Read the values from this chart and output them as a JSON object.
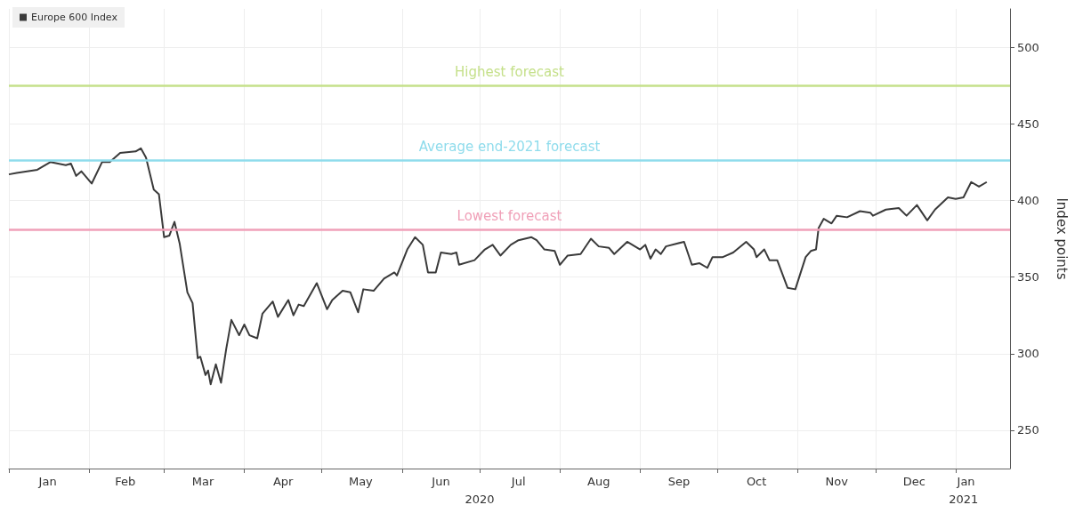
{
  "chart_data": {
    "type": "line",
    "ylabel": "Index points",
    "xlim": [
      "2020-01-01",
      "2021-01-22"
    ],
    "xticks": [
      {
        "value": "2020-01-01",
        "label": null
      },
      {
        "value": "2020-01-16",
        "label": "Jan"
      },
      {
        "value": "2020-02-01",
        "label": null
      },
      {
        "value": "2020-02-15",
        "label": "Feb"
      },
      {
        "value": "2020-03-01",
        "label": null
      },
      {
        "value": "2020-03-16",
        "label": "Mar"
      },
      {
        "value": "2020-04-01",
        "label": null
      },
      {
        "value": "2020-04-16",
        "label": "Apr"
      },
      {
        "value": "2020-05-01",
        "label": null
      },
      {
        "value": "2020-05-16",
        "label": "May"
      },
      {
        "value": "2020-06-01",
        "label": null
      },
      {
        "value": "2020-06-16",
        "label": "Jun"
      },
      {
        "value": "2020-07-01",
        "label": null
      },
      {
        "value": "2020-07-16",
        "label": "Jul"
      },
      {
        "value": "2020-08-01",
        "label": null
      },
      {
        "value": "2020-08-16",
        "label": "Aug"
      },
      {
        "value": "2020-09-01",
        "label": null
      },
      {
        "value": "2020-09-16",
        "label": "Sep"
      },
      {
        "value": "2020-10-01",
        "label": null
      },
      {
        "value": "2020-10-16",
        "label": "Oct"
      },
      {
        "value": "2020-11-01",
        "label": null
      },
      {
        "value": "2020-11-16",
        "label": "Nov"
      },
      {
        "value": "2020-12-01",
        "label": null
      },
      {
        "value": "2020-12-16",
        "label": "Dec"
      },
      {
        "value": "2021-01-01",
        "label": null
      },
      {
        "value": "2021-01-05",
        "label": "Jan"
      }
    ],
    "x2lim": [
      "2020-01-01",
      "2021-01-22"
    ],
    "x2ticks": [
      {
        "value": "2020-07-01",
        "label": "2020"
      },
      {
        "value": "2021-01-04",
        "label": "2021"
      }
    ],
    "ylim": [
      225,
      525
    ],
    "yticks": [
      250,
      300,
      350,
      400,
      450,
      500
    ],
    "grid": true,
    "legend": "top left",
    "ref_lines": [
      {
        "axis": "y",
        "value": 475,
        "label": "Highest forecast",
        "color": "#c5e08a"
      },
      {
        "axis": "y",
        "value": 426,
        "label": "Average end-2021 forecast",
        "color": "#8fdcec"
      },
      {
        "axis": "y",
        "value": 381,
        "label": "Lowest forecast",
        "color": "#f0a0b8"
      }
    ],
    "series": [
      {
        "name": "Europe 600 Index",
        "color": "#3a3a3a",
        "x": [
          "2020-01-01",
          "2020-01-04",
          "2020-01-12",
          "2020-01-17",
          "2020-01-23",
          "2020-01-25",
          "2020-01-27",
          "2020-01-29",
          "2020-02-02",
          "2020-02-06",
          "2020-02-09",
          "2020-02-13",
          "2020-02-19",
          "2020-02-21",
          "2020-02-23",
          "2020-02-26",
          "2020-02-28",
          "2020-03-01",
          "2020-03-03",
          "2020-03-05",
          "2020-03-07",
          "2020-03-10",
          "2020-03-12",
          "2020-03-14",
          "2020-03-15",
          "2020-03-17",
          "2020-03-18",
          "2020-03-19",
          "2020-03-21",
          "2020-03-23",
          "2020-03-25",
          "2020-03-27",
          "2020-03-30",
          "2020-04-01",
          "2020-04-03",
          "2020-04-06",
          "2020-04-08",
          "2020-04-12",
          "2020-04-14",
          "2020-04-18",
          "2020-04-20",
          "2020-04-22",
          "2020-04-24",
          "2020-04-29",
          "2020-05-03",
          "2020-05-05",
          "2020-05-09",
          "2020-05-12",
          "2020-05-15",
          "2020-05-17",
          "2020-05-21",
          "2020-05-25",
          "2020-05-29",
          "2020-05-30",
          "2020-06-03",
          "2020-06-06",
          "2020-06-09",
          "2020-06-11",
          "2020-06-14",
          "2020-06-16",
          "2020-06-20",
          "2020-06-22",
          "2020-06-23",
          "2020-06-29",
          "2020-07-03",
          "2020-07-06",
          "2020-07-09",
          "2020-07-13",
          "2020-07-16",
          "2020-07-21",
          "2020-07-23",
          "2020-07-26",
          "2020-07-30",
          "2020-08-01",
          "2020-08-04",
          "2020-08-09",
          "2020-08-13",
          "2020-08-16",
          "2020-08-20",
          "2020-08-22",
          "2020-08-27",
          "2020-09-01",
          "2020-09-03",
          "2020-09-05",
          "2020-09-07",
          "2020-09-09",
          "2020-09-11",
          "2020-09-18",
          "2020-09-21",
          "2020-09-24",
          "2020-09-27",
          "2020-09-29",
          "2020-10-03",
          "2020-10-07",
          "2020-10-12",
          "2020-10-15",
          "2020-10-16",
          "2020-10-19",
          "2020-10-21",
          "2020-10-24",
          "2020-10-28",
          "2020-10-31",
          "2020-11-04",
          "2020-11-06",
          "2020-11-08",
          "2020-11-09",
          "2020-11-11",
          "2020-11-14",
          "2020-11-16",
          "2020-11-20",
          "2020-11-25",
          "2020-11-29",
          "2020-11-30",
          "2020-12-05",
          "2020-12-10",
          "2020-12-13",
          "2020-12-17",
          "2020-12-21",
          "2020-12-24",
          "2020-12-29",
          "2021-01-01",
          "2021-01-04",
          "2021-01-07",
          "2021-01-10",
          "2021-01-13"
        ],
        "values": [
          417,
          418,
          420,
          425,
          423,
          424,
          416,
          419,
          411,
          425,
          425,
          431,
          432,
          434,
          428,
          407,
          404,
          376,
          377,
          386,
          372,
          340,
          333,
          297,
          298,
          286,
          289,
          280,
          293,
          281,
          303,
          322,
          312,
          319,
          312,
          310,
          326,
          334,
          324,
          335,
          325,
          332,
          331,
          346,
          329,
          335,
          341,
          340,
          327,
          342,
          341,
          349,
          353,
          351,
          368,
          376,
          371,
          353,
          353,
          366,
          365,
          366,
          358,
          361,
          368,
          371,
          364,
          371,
          374,
          376,
          374,
          368,
          367,
          358,
          364,
          365,
          375,
          370,
          369,
          365,
          373,
          368,
          371,
          362,
          368,
          365,
          370,
          373,
          358,
          359,
          356,
          363,
          363,
          366,
          373,
          368,
          363,
          368,
          361,
          361,
          343,
          342,
          363,
          367,
          368,
          382,
          388,
          385,
          390,
          389,
          393,
          392,
          390,
          394,
          395,
          390,
          397,
          387,
          394,
          402,
          401,
          402,
          412,
          409,
          412
        ]
      }
    ]
  }
}
